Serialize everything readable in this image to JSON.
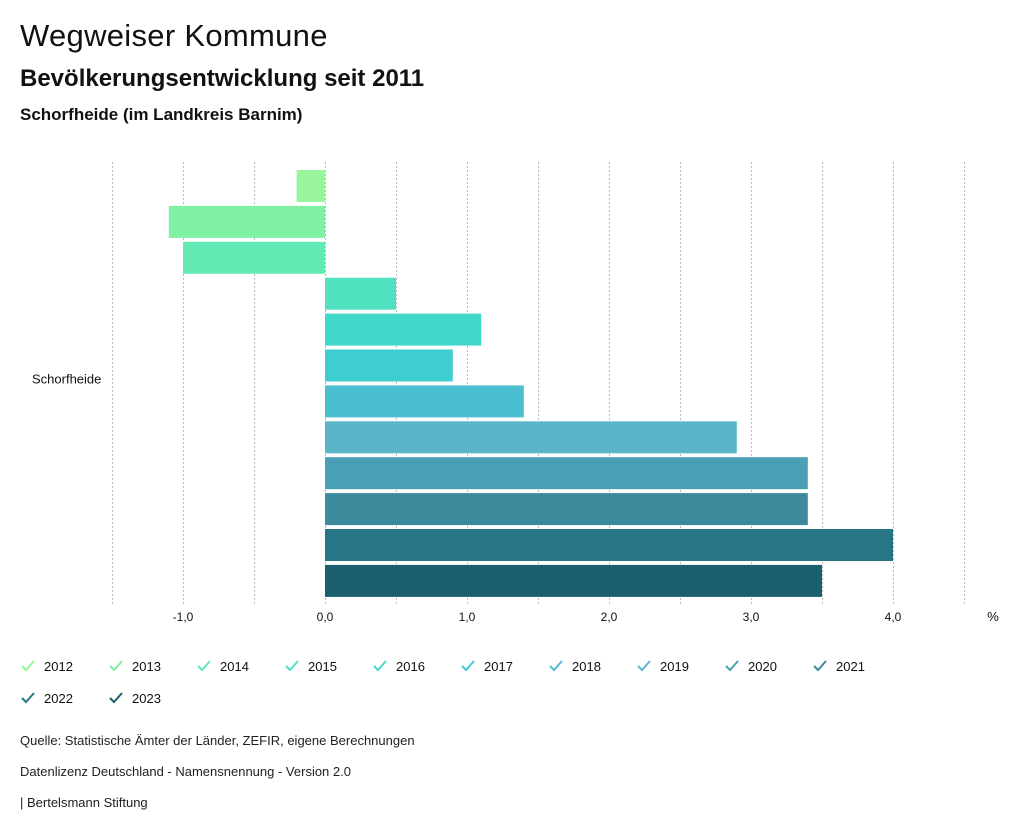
{
  "header": {
    "title": "Wegweiser Kommune",
    "subtitle": "Bevölkerungsentwicklung seit 2011",
    "region": "Schorfheide (im Landkreis Barnim)"
  },
  "chart_data": {
    "type": "bar",
    "orientation": "horizontal",
    "category": "Schorfheide",
    "unit": "%",
    "xlim": [
      -1.5,
      4.5
    ],
    "xticks": [
      -1.0,
      0.0,
      1.0,
      2.0,
      3.0,
      4.0
    ],
    "xtick_labels": [
      "-1,0",
      "0,0",
      "1,0",
      "2,0",
      "3,0",
      "4,0"
    ],
    "grid": true,
    "series": [
      {
        "name": "2012",
        "value": -0.2,
        "color": "#98f59b"
      },
      {
        "name": "2013",
        "value": -1.1,
        "color": "#80f0a2"
      },
      {
        "name": "2014",
        "value": -1.0,
        "color": "#62e9b4"
      },
      {
        "name": "2015",
        "value": 0.5,
        "color": "#50e2c0"
      },
      {
        "name": "2016",
        "value": 1.1,
        "color": "#41d7c9"
      },
      {
        "name": "2017",
        "value": 0.9,
        "color": "#40cdd0"
      },
      {
        "name": "2018",
        "value": 1.4,
        "color": "#4bbfcf"
      },
      {
        "name": "2019",
        "value": 2.9,
        "color": "#5bb5c8"
      },
      {
        "name": "2020",
        "value": 3.4,
        "color": "#499fb4"
      },
      {
        "name": "2021",
        "value": 3.4,
        "color": "#3c8a9c"
      },
      {
        "name": "2022",
        "value": 4.0,
        "color": "#287585"
      },
      {
        "name": "2023",
        "value": 3.5,
        "color": "#195f6d"
      }
    ]
  },
  "footer": {
    "source": "Quelle: Statistische Ämter der Länder, ZEFIR, eigene Berechnungen",
    "license": "Datenlizenz Deutschland - Namensnennung - Version 2.0",
    "publisher": "| Bertelsmann Stiftung"
  }
}
